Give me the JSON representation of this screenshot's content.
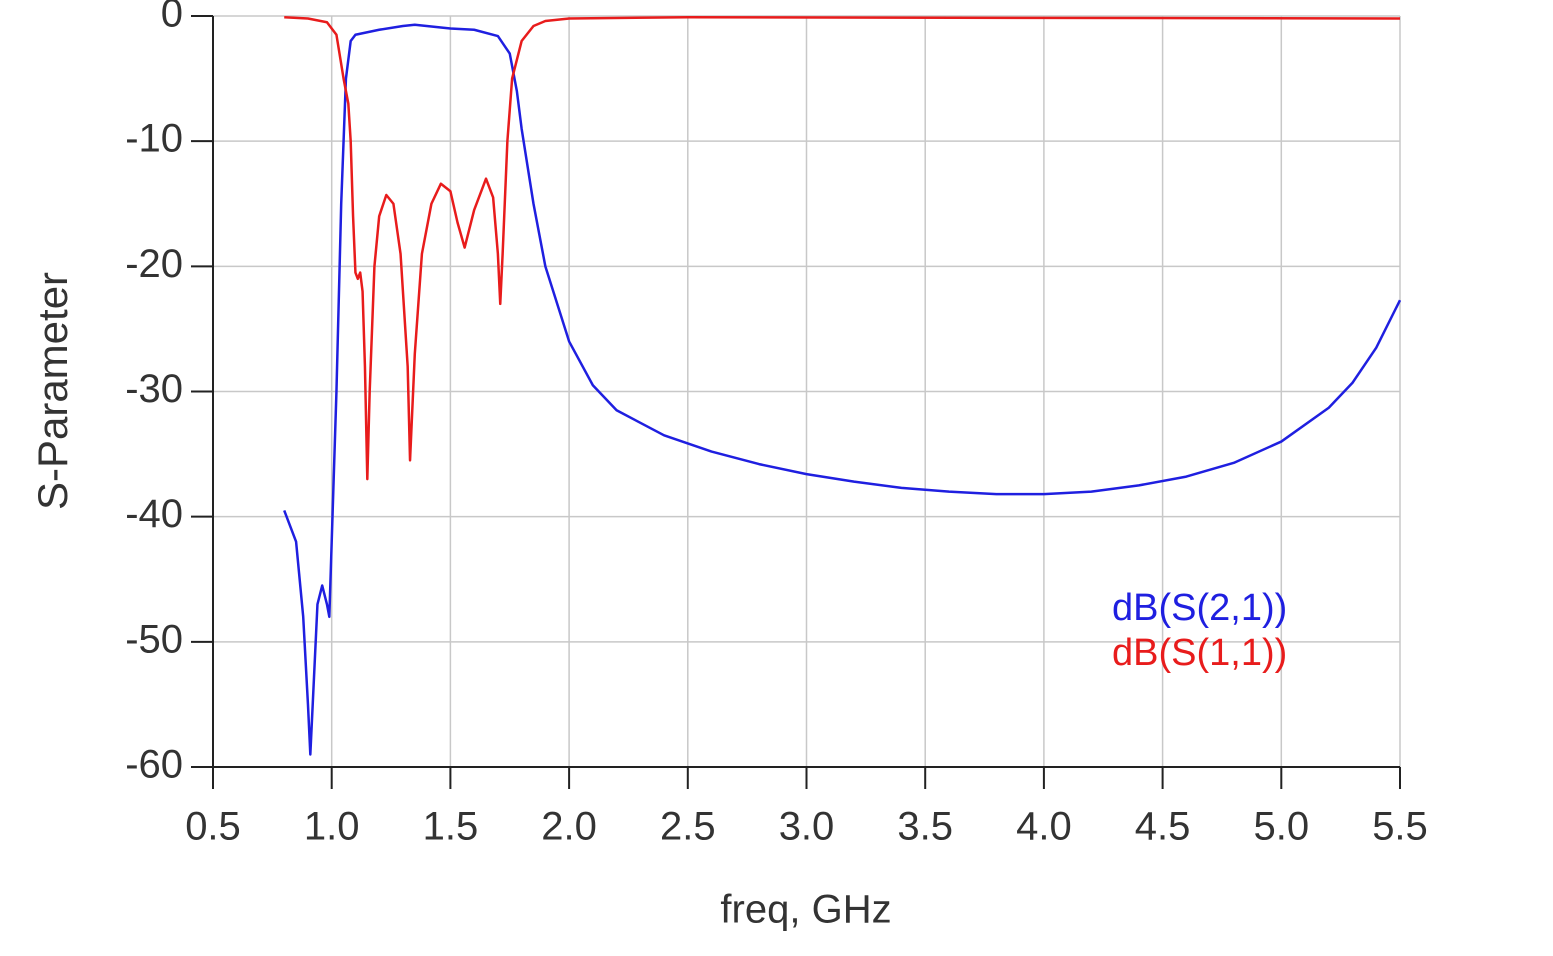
{
  "chart_data": {
    "type": "line",
    "xlabel": "freq, GHz",
    "ylabel": "S-Parameter",
    "xlim": [
      0.5,
      5.5
    ],
    "xticks": [
      0.5,
      {
        "value": 1,
        "label": "1.0"
      },
      1.5,
      {
        "value": 2,
        "label": "2.0"
      },
      2.5,
      {
        "value": 3,
        "label": "3.0"
      },
      3.5,
      {
        "value": 4,
        "label": "4.0"
      },
      4.5,
      {
        "value": 5,
        "label": "5.0"
      },
      5.5
    ],
    "ylim": [
      -60,
      0
    ],
    "yticks": [
      -60,
      -50,
      -40,
      -30,
      -20,
      -10,
      0
    ],
    "grid": true,
    "legend": "lower right",
    "series": [
      {
        "name": "dB(S(2,1))",
        "color": "#1f1fe0",
        "x": [
          0.8,
          0.85,
          0.88,
          0.9,
          0.91,
          0.92,
          0.94,
          0.96,
          0.98,
          0.99,
          1.0,
          1.02,
          1.04,
          1.06,
          1.08,
          1.1,
          1.2,
          1.3,
          1.35,
          1.4,
          1.5,
          1.6,
          1.7,
          1.75,
          1.78,
          1.8,
          1.85,
          1.9,
          2.0,
          2.1,
          2.2,
          2.4,
          2.6,
          2.8,
          3.0,
          3.2,
          3.4,
          3.6,
          3.8,
          4.0,
          4.2,
          4.4,
          4.6,
          4.8,
          5.0,
          5.2,
          5.3,
          5.4,
          5.5
        ],
        "values": [
          -39.5,
          -42,
          -48,
          -55,
          -59,
          -55,
          -47,
          -45.5,
          -47,
          -48,
          -42,
          -30,
          -15,
          -5,
          -2,
          -1.5,
          -1.1,
          -0.8,
          -0.7,
          -0.8,
          -1.0,
          -1.1,
          -1.6,
          -3,
          -6,
          -9,
          -15,
          -20,
          -26,
          -29.5,
          -31.5,
          -33.5,
          -34.8,
          -35.8,
          -36.6,
          -37.2,
          -37.7,
          -38,
          -38.2,
          -38.2,
          -38,
          -37.5,
          -36.8,
          -35.7,
          -34,
          -31.3,
          -29.3,
          -26.5,
          -22.7
        ]
      },
      {
        "name": "dB(S(1,1))",
        "color": "#e81c1c",
        "x": [
          0.8,
          0.9,
          0.98,
          1.02,
          1.05,
          1.07,
          1.08,
          1.09,
          1.1,
          1.11,
          1.12,
          1.13,
          1.14,
          1.15,
          1.16,
          1.18,
          1.2,
          1.23,
          1.26,
          1.29,
          1.32,
          1.33,
          1.35,
          1.38,
          1.42,
          1.46,
          1.5,
          1.53,
          1.56,
          1.6,
          1.65,
          1.68,
          1.7,
          1.71,
          1.72,
          1.74,
          1.76,
          1.8,
          1.85,
          1.9,
          2.0,
          2.5,
          5.5
        ],
        "values": [
          -0.1,
          -0.2,
          -0.5,
          -1.5,
          -5,
          -7,
          -10,
          -16,
          -20.5,
          -21,
          -20.5,
          -22,
          -28,
          -37,
          -30,
          -20,
          -16,
          -14.3,
          -15,
          -19,
          -28,
          -35.5,
          -27,
          -19,
          -15,
          -13.4,
          -14,
          -16.5,
          -18.5,
          -15.5,
          -13,
          -14.5,
          -19,
          -23,
          -19,
          -10,
          -5,
          -2,
          -0.8,
          -0.4,
          -0.2,
          -0.1,
          -0.2
        ]
      }
    ]
  }
}
